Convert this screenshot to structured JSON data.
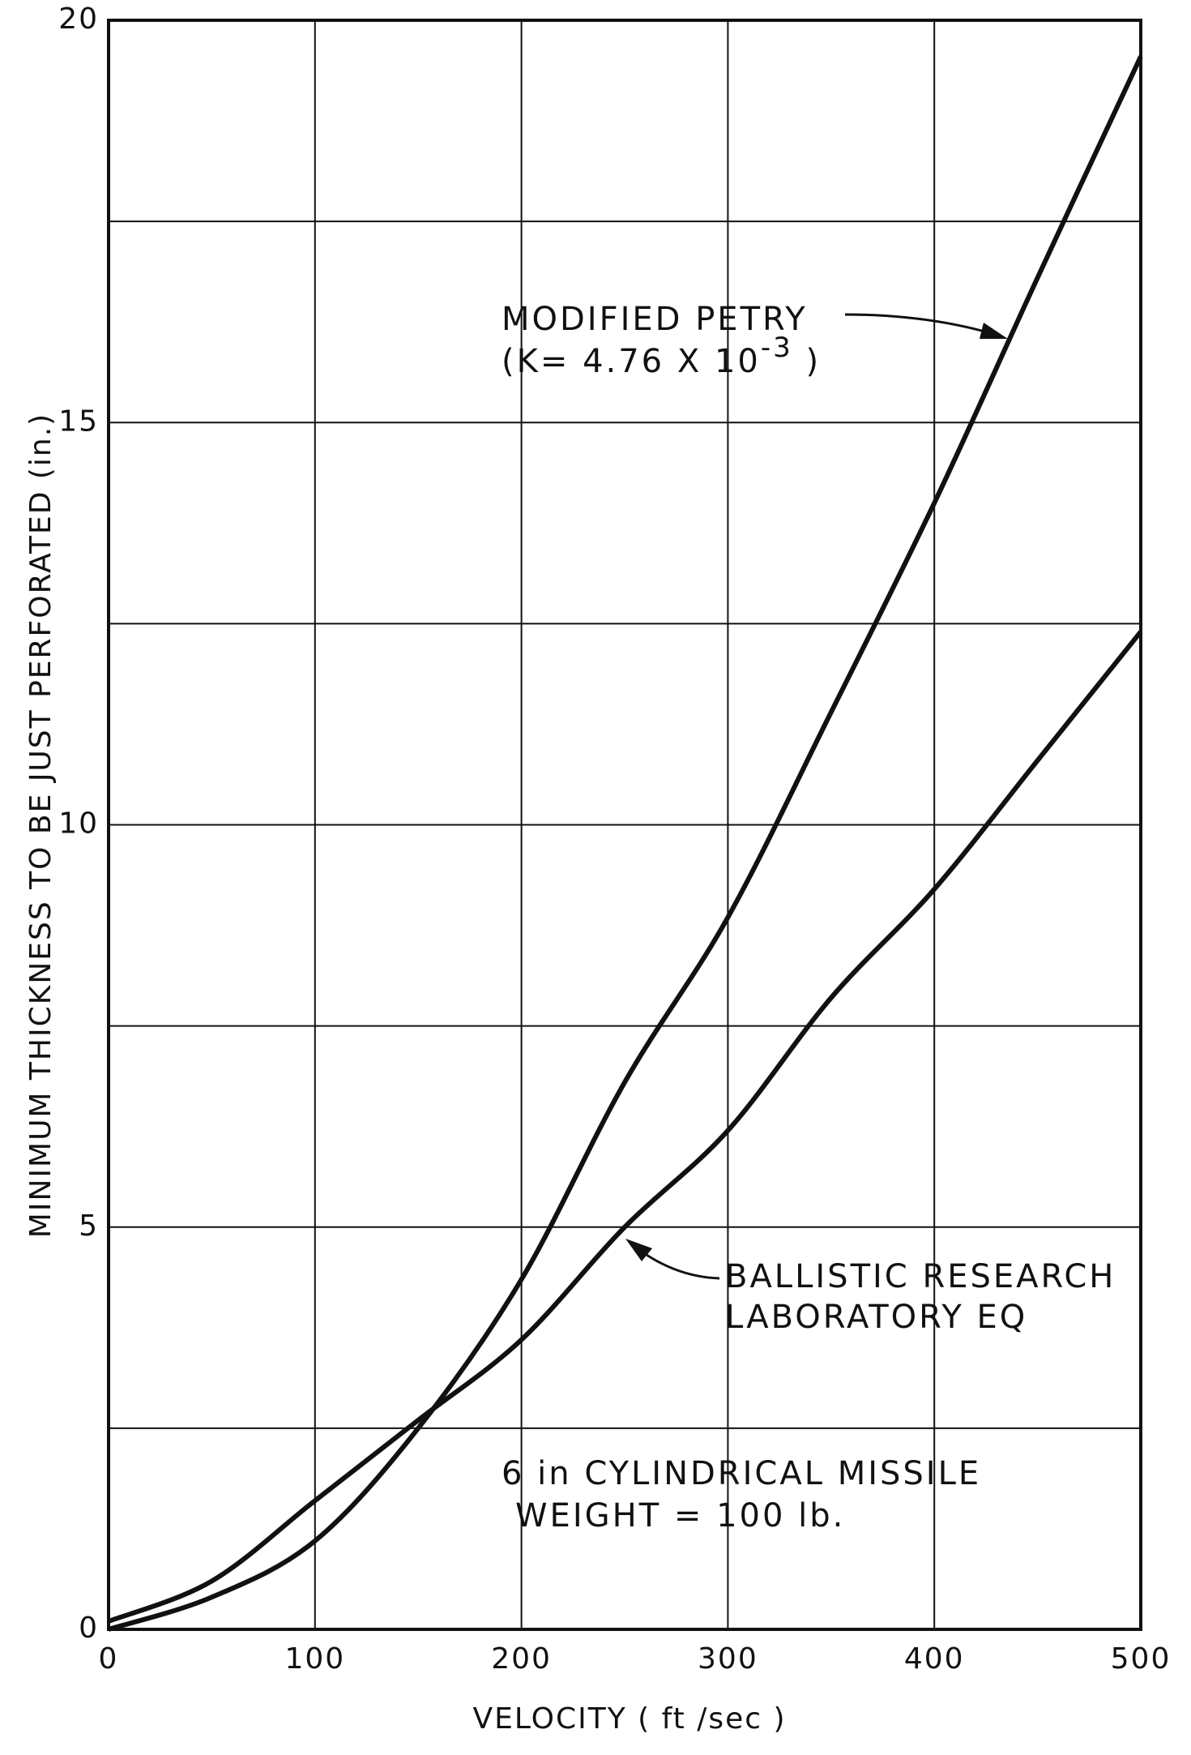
{
  "chart_data": {
    "type": "line",
    "x_label": "VELOCITY  ( ft /sec )",
    "y_label": "MINIMUM  THICKNESS  TO  BE  JUST  PERFORATED  (in.)",
    "x": [
      0,
      50,
      100,
      150,
      200,
      250,
      300,
      350,
      400,
      450,
      500
    ],
    "series": [
      {
        "color": "#111111",
        "values": [
          0,
          0.4,
          1.1,
          2.5,
          4.35,
          6.8,
          8.85,
          11.4,
          14,
          16.8,
          19.55
        ]
      },
      {
        "color": "#111111",
        "values": [
          0.1,
          0.6,
          1.6,
          2.6,
          3.6,
          5.0,
          6.2,
          7.85,
          9.2,
          10.8,
          12.4
        ]
      }
    ],
    "xlim": [
      0,
      500
    ],
    "xticks": [
      0,
      100,
      200,
      300,
      400,
      500
    ],
    "ylim": [
      0,
      20
    ],
    "yticks": [
      0,
      5,
      10,
      15,
      20
    ],
    "minor_yticks": [
      2.5,
      7.5,
      12.5,
      17.5
    ],
    "grid": true,
    "annotations": [
      {
        "lines": [
          "MODIFIED  PETRY"
        ]
      },
      {
        "lines": [
          "(K= 4.76 X 10",
          "-3",
          " )"
        ]
      },
      {
        "lines": [
          "BALLISTIC  RESEARCH",
          "LABORATORY  EQ"
        ]
      },
      {
        "lines": [
          "6 in  CYLINDRICAL  MISSILE",
          "WEIGHT  =  100 lb."
        ]
      }
    ]
  }
}
